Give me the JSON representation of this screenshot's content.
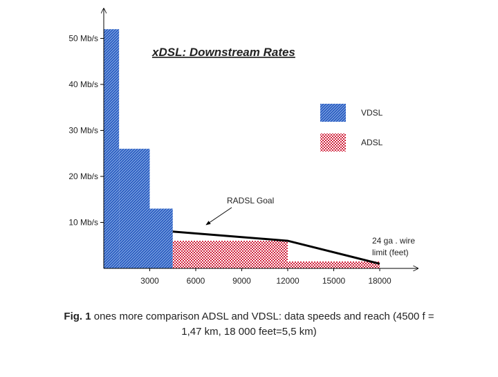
{
  "chart_data": {
    "type": "step",
    "title": "xDSL: Downstream Rates",
    "series": [
      {
        "name": "VDSL",
        "color": "#2a5cc0",
        "bins": [
          0,
          1000,
          3000,
          4500
        ],
        "values": [
          52,
          26,
          13
        ]
      },
      {
        "name": "ADSL",
        "color": "#d0203a",
        "bins": [
          4500,
          12000,
          18000
        ],
        "values": [
          6,
          1.5
        ]
      }
    ],
    "goal": {
      "name": "RADSL Goal",
      "x": [
        4500,
        12000,
        18000
      ],
      "values": [
        8,
        6,
        1
      ]
    },
    "annotation": [
      "24 ga . wire",
      "limit (feet)"
    ],
    "xlim": [
      0,
      20500
    ],
    "ylim": [
      0,
      55
    ],
    "xticks": [
      3000,
      6000,
      9000,
      12000,
      15000,
      18000
    ],
    "yticks": [
      {
        "value": 10,
        "label": "10 Mb/s"
      },
      {
        "value": 20,
        "label": "20 Mb/s"
      },
      {
        "value": 30,
        "label": "30 Mb/s"
      },
      {
        "value": 40,
        "label": "40 Mb/s"
      },
      {
        "value": 50,
        "label": "50 Mb/s"
      }
    ],
    "caption": {
      "label": "Fig. 1",
      "lines": [
        "ones more comparison ADSL and VDSL: data speeds and reach (4500 f =",
        "1,47 km, 18 000 feet=5,5 km)"
      ]
    }
  }
}
